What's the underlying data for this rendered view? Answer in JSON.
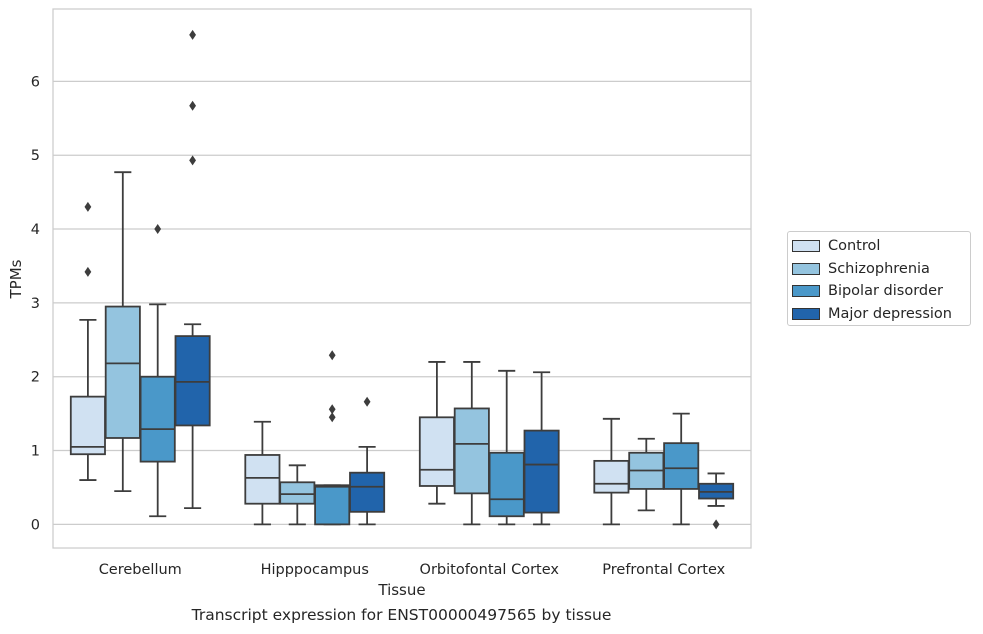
{
  "chart_data": {
    "type": "box",
    "xlabel": "Tissue",
    "ylabel": "TPMs",
    "caption": "Transcript expression for ENST00000497565 by tissue",
    "ylim": [
      -0.32,
      6.98
    ],
    "yticks": [
      0,
      1,
      2,
      3,
      4,
      5,
      6
    ],
    "grid": true,
    "legend_position": "right",
    "categories": [
      "Cerebellum",
      "Hipppocampus",
      "Orbitofontal Cortex",
      "Prefrontal Cortex"
    ],
    "series": [
      {
        "name": "Control",
        "color": "#d0e1f2",
        "boxes": [
          {
            "whislo": 0.6,
            "q1": 0.95,
            "med": 1.05,
            "q3": 1.73,
            "whishi": 2.77,
            "fliers": [
              3.42,
              4.3
            ]
          },
          {
            "whislo": 0.0,
            "q1": 0.28,
            "med": 0.63,
            "q3": 0.94,
            "whishi": 1.39,
            "fliers": []
          },
          {
            "whislo": 0.28,
            "q1": 0.52,
            "med": 0.74,
            "q3": 1.45,
            "whishi": 2.2,
            "fliers": []
          },
          {
            "whislo": 0.0,
            "q1": 0.43,
            "med": 0.55,
            "q3": 0.86,
            "whishi": 1.43,
            "fliers": []
          }
        ]
      },
      {
        "name": "Schizophrenia",
        "color": "#94c4df",
        "boxes": [
          {
            "whislo": 0.45,
            "q1": 1.17,
            "med": 2.18,
            "q3": 2.95,
            "whishi": 4.77,
            "fliers": []
          },
          {
            "whislo": 0.0,
            "q1": 0.28,
            "med": 0.41,
            "q3": 0.57,
            "whishi": 0.8,
            "fliers": []
          },
          {
            "whislo": 0.0,
            "q1": 0.42,
            "med": 1.09,
            "q3": 1.57,
            "whishi": 2.2,
            "fliers": []
          },
          {
            "whislo": 0.19,
            "q1": 0.48,
            "med": 0.73,
            "q3": 0.97,
            "whishi": 1.16,
            "fliers": []
          }
        ]
      },
      {
        "name": "Bipolar disorder",
        "color": "#4a98c9",
        "boxes": [
          {
            "whislo": 0.11,
            "q1": 0.85,
            "med": 1.29,
            "q3": 2.0,
            "whishi": 2.98,
            "fliers": [
              4.0
            ]
          },
          {
            "whislo": 0.0,
            "q1": 0.0,
            "med": 0.51,
            "q3": 0.53,
            "whishi": 0.53,
            "fliers": [
              1.45,
              1.56,
              2.29
            ]
          },
          {
            "whislo": 0.0,
            "q1": 0.11,
            "med": 0.34,
            "q3": 0.97,
            "whishi": 2.08,
            "fliers": []
          },
          {
            "whislo": 0.0,
            "q1": 0.48,
            "med": 0.76,
            "q3": 1.1,
            "whishi": 1.5,
            "fliers": []
          }
        ]
      },
      {
        "name": "Major depression",
        "color": "#2164ab",
        "boxes": [
          {
            "whislo": 0.22,
            "q1": 1.34,
            "med": 1.93,
            "q3": 2.55,
            "whishi": 2.71,
            "fliers": [
              4.93,
              5.67,
              6.63
            ]
          },
          {
            "whislo": 0.0,
            "q1": 0.17,
            "med": 0.51,
            "q3": 0.7,
            "whishi": 1.05,
            "fliers": [
              1.66
            ]
          },
          {
            "whislo": 0.0,
            "q1": 0.16,
            "med": 0.81,
            "q3": 1.27,
            "whishi": 2.06,
            "fliers": []
          },
          {
            "whislo": 0.25,
            "q1": 0.35,
            "med": 0.44,
            "q3": 0.55,
            "whishi": 0.69,
            "fliers": [
              0.0
            ]
          }
        ]
      }
    ]
  }
}
